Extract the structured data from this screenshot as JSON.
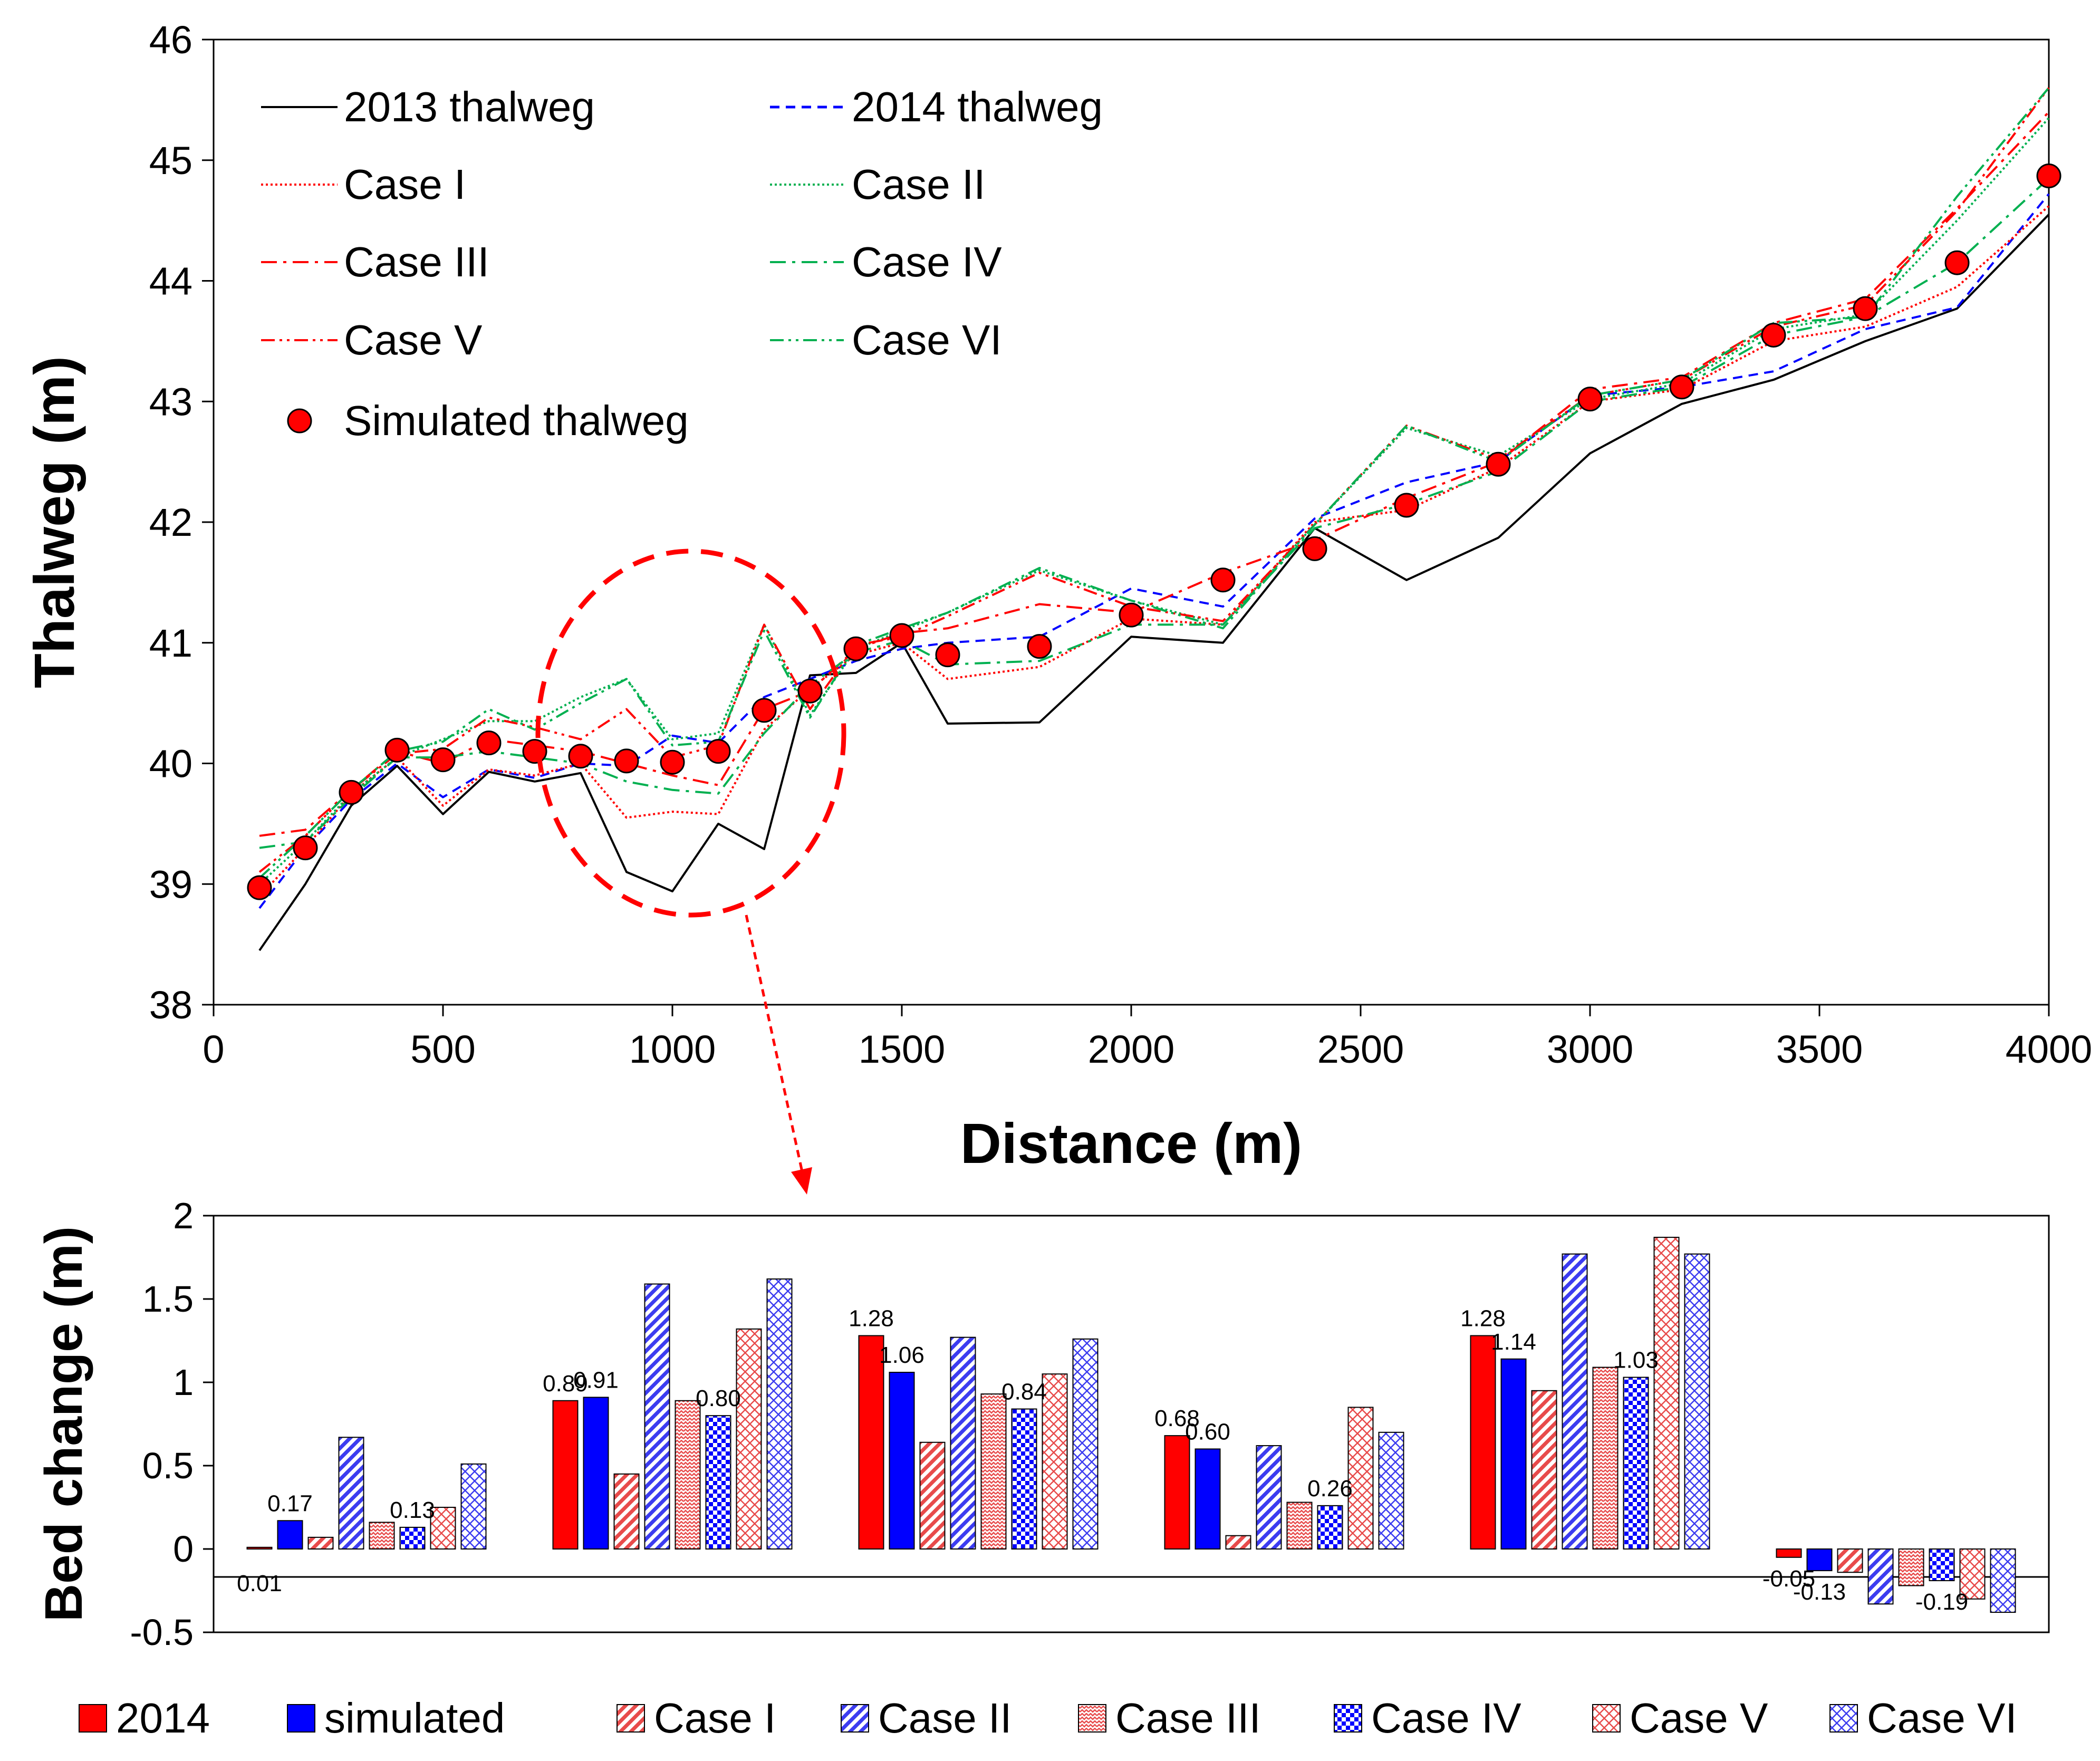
{
  "chart_data": [
    {
      "type": "line",
      "title": "",
      "xlabel": "Distance (m)",
      "ylabel": "Thalweg (m)",
      "xlim": [
        0,
        4000
      ],
      "ylim": [
        38,
        46
      ],
      "xticks": [
        "0",
        "500",
        "1000",
        "1500",
        "2000",
        "2500",
        "3000",
        "3500",
        "4000"
      ],
      "yticks": [
        "38",
        "39",
        "40",
        "41",
        "42",
        "43",
        "44",
        "45",
        "46"
      ],
      "legend_position": "top-left",
      "series": [
        {
          "name": "2013 thalweg",
          "color": "#000000",
          "style": "solid",
          "x": [
            100,
            200,
            300,
            400,
            500,
            600,
            700,
            800,
            900,
            1000,
            1100,
            1200,
            1300,
            1400,
            1500,
            1600,
            1800,
            2000,
            2200,
            2400,
            2600,
            2800,
            3000,
            3200,
            3400,
            3600,
            3800,
            4000
          ],
          "y": [
            38.45,
            39.0,
            39.65,
            39.98,
            39.58,
            39.93,
            39.85,
            39.92,
            39.1,
            38.94,
            39.5,
            39.29,
            40.73,
            40.75,
            41.0,
            40.33,
            40.34,
            41.05,
            41.0,
            41.95,
            41.52,
            41.87,
            42.57,
            42.98,
            43.18,
            43.5,
            43.77,
            44.55
          ]
        },
        {
          "name": "2014 thalweg",
          "color": "#0000ff",
          "style": "dash",
          "x": [
            100,
            200,
            300,
            400,
            500,
            600,
            700,
            800,
            900,
            1000,
            1100,
            1200,
            1300,
            1400,
            1500,
            1600,
            1800,
            2000,
            2200,
            2400,
            2600,
            2800,
            3000,
            3200,
            3400,
            3600,
            3800,
            4000
          ],
          "y": [
            38.8,
            39.3,
            39.7,
            40.0,
            39.72,
            39.95,
            39.88,
            40.0,
            39.98,
            40.23,
            40.17,
            40.55,
            40.7,
            40.85,
            40.95,
            41.0,
            41.05,
            41.45,
            41.3,
            42.03,
            42.33,
            42.5,
            43.05,
            43.12,
            43.25,
            43.6,
            43.78,
            44.72
          ]
        },
        {
          "name": "Case I",
          "color": "#ff0000",
          "style": "dot",
          "x": [
            100,
            200,
            300,
            400,
            500,
            600,
            700,
            800,
            900,
            1000,
            1100,
            1200,
            1300,
            1400,
            1500,
            1600,
            1800,
            2000,
            2200,
            2400,
            2600,
            2800,
            3000,
            3200,
            3400,
            3600,
            3800,
            4000
          ],
          "y": [
            38.9,
            39.3,
            39.75,
            40.05,
            39.65,
            39.95,
            39.9,
            40.0,
            39.55,
            39.6,
            39.58,
            40.28,
            40.62,
            40.9,
            41.0,
            40.7,
            40.8,
            41.2,
            41.15,
            42.0,
            42.1,
            42.45,
            43.0,
            43.1,
            43.5,
            43.62,
            43.95,
            44.62
          ]
        },
        {
          "name": "Case II",
          "color": "#00b050",
          "style": "dot",
          "x": [
            100,
            200,
            300,
            400,
            500,
            600,
            700,
            800,
            900,
            1000,
            1100,
            1200,
            1300,
            1400,
            1500,
            1600,
            1800,
            2000,
            2200,
            2400,
            2600,
            2800,
            3000,
            3200,
            3400,
            3600,
            3800,
            4000
          ],
          "y": [
            39.0,
            39.35,
            39.75,
            40.05,
            40.2,
            40.35,
            40.35,
            40.55,
            40.7,
            40.2,
            40.25,
            41.15,
            40.4,
            40.95,
            41.1,
            41.25,
            41.6,
            41.35,
            41.15,
            41.98,
            42.78,
            42.55,
            43.02,
            43.15,
            43.6,
            43.72,
            44.5,
            45.35
          ]
        },
        {
          "name": "Case III",
          "color": "#ff0000",
          "style": "dashdot",
          "x": [
            100,
            200,
            300,
            400,
            500,
            600,
            700,
            800,
            900,
            1000,
            1100,
            1200,
            1300,
            1400,
            1500,
            1600,
            1800,
            2000,
            2200,
            2400,
            2600,
            2800,
            3000,
            3200,
            3400,
            3600,
            3800,
            4000
          ],
          "y": [
            39.4,
            39.45,
            39.78,
            40.1,
            40.0,
            40.2,
            40.15,
            40.1,
            40.0,
            39.9,
            39.82,
            40.45,
            40.6,
            40.95,
            41.08,
            41.12,
            41.32,
            41.25,
            41.58,
            41.85,
            42.2,
            42.5,
            43.1,
            43.2,
            43.65,
            43.85,
            44.6,
            45.4
          ]
        },
        {
          "name": "Case IV",
          "color": "#00b050",
          "style": "dashdot",
          "x": [
            100,
            200,
            300,
            400,
            500,
            600,
            700,
            800,
            900,
            1000,
            1100,
            1200,
            1300,
            1400,
            1500,
            1600,
            1800,
            2000,
            2200,
            2400,
            2600,
            2800,
            3000,
            3200,
            3400,
            3600,
            3800,
            4000
          ],
          "y": [
            39.3,
            39.35,
            39.72,
            40.05,
            40.05,
            40.1,
            40.05,
            40.0,
            39.85,
            39.78,
            39.75,
            40.25,
            40.65,
            40.92,
            41.02,
            40.82,
            40.85,
            41.15,
            41.15,
            41.95,
            42.15,
            42.42,
            43.0,
            43.12,
            43.55,
            43.7,
            44.15,
            44.85
          ]
        },
        {
          "name": "Case V",
          "color": "#ff0000",
          "style": "dashdotdot",
          "x": [
            100,
            200,
            300,
            400,
            500,
            600,
            700,
            800,
            900,
            1000,
            1100,
            1200,
            1300,
            1400,
            1500,
            1600,
            1800,
            2000,
            2200,
            2400,
            2600,
            2800,
            3000,
            3200,
            3400,
            3600,
            3800,
            4000
          ],
          "y": [
            39.1,
            39.4,
            39.78,
            40.08,
            40.12,
            40.38,
            40.3,
            40.2,
            40.45,
            40.05,
            40.15,
            41.15,
            40.45,
            40.98,
            41.05,
            41.22,
            41.58,
            41.3,
            41.18,
            41.98,
            42.8,
            42.52,
            43.05,
            43.18,
            43.62,
            43.8,
            44.58,
            45.6
          ]
        },
        {
          "name": "Case VI",
          "color": "#00b050",
          "style": "dashdotdot",
          "x": [
            100,
            200,
            300,
            400,
            500,
            600,
            700,
            800,
            900,
            1000,
            1100,
            1200,
            1300,
            1400,
            1500,
            1600,
            1800,
            2000,
            2200,
            2400,
            2600,
            2800,
            3000,
            3200,
            3400,
            3600,
            3800,
            4000
          ],
          "y": [
            39.05,
            39.4,
            39.78,
            40.1,
            40.18,
            40.45,
            40.28,
            40.5,
            40.7,
            40.15,
            40.18,
            41.1,
            40.38,
            40.98,
            41.12,
            41.25,
            41.62,
            41.35,
            41.12,
            41.98,
            42.8,
            42.5,
            43.05,
            43.18,
            43.65,
            43.7,
            44.7,
            45.6
          ]
        },
        {
          "name": "Simulated thalweg",
          "color": "#ff0000",
          "style": "marker",
          "x": [
            100,
            200,
            300,
            400,
            500,
            600,
            700,
            800,
            900,
            1000,
            1100,
            1200,
            1300,
            1400,
            1500,
            1600,
            1800,
            2000,
            2200,
            2400,
            2600,
            2800,
            3000,
            3200,
            3400,
            3600,
            3800,
            4000
          ],
          "y": [
            38.97,
            39.3,
            39.76,
            40.11,
            40.03,
            40.17,
            40.1,
            40.06,
            40.02,
            40.01,
            40.1,
            40.44,
            40.6,
            40.95,
            41.06,
            40.9,
            40.97,
            41.23,
            41.52,
            41.78,
            42.14,
            42.48,
            43.02,
            43.12,
            43.55,
            43.77,
            44.15,
            44.87
          ]
        }
      ]
    },
    {
      "type": "bar",
      "title": "",
      "xlabel": "",
      "ylabel": "Bed change (m)",
      "ylim": [
        -0.5,
        2
      ],
      "yticks": [
        "-0.5",
        "0",
        "0.5",
        "1",
        "1.5",
        "2"
      ],
      "legend_position": "bottom",
      "series": [
        {
          "name": "2014",
          "color": "#ff0000",
          "pattern": "solid-red",
          "values": [
            0.01,
            0.89,
            1.28,
            0.68,
            1.28,
            -0.05
          ]
        },
        {
          "name": "simulated",
          "color": "#0000ff",
          "pattern": "solid-blue",
          "values": [
            0.17,
            0.91,
            1.06,
            0.6,
            1.14,
            -0.13
          ]
        },
        {
          "name": "Case I",
          "color": "#ff0000",
          "pattern": "diag-red",
          "values": [
            0.07,
            0.45,
            0.64,
            0.08,
            0.95,
            -0.14
          ]
        },
        {
          "name": "Case II",
          "color": "#0000ff",
          "pattern": "diag-blue",
          "values": [
            0.67,
            1.59,
            1.27,
            0.62,
            1.77,
            -0.33
          ]
        },
        {
          "name": "Case III",
          "color": "#ff0000",
          "pattern": "zig-red",
          "values": [
            0.16,
            0.89,
            0.93,
            0.28,
            1.09,
            -0.22
          ]
        },
        {
          "name": "Case IV",
          "color": "#0000ff",
          "pattern": "check-blue",
          "values": [
            0.13,
            0.8,
            0.84,
            0.26,
            1.03,
            -0.19
          ]
        },
        {
          "name": "Case V",
          "color": "#ff0000",
          "pattern": "cross-red",
          "values": [
            0.25,
            1.32,
            1.05,
            0.85,
            1.87,
            -0.3
          ]
        },
        {
          "name": "Case VI",
          "color": "#0000ff",
          "pattern": "cross-blue",
          "values": [
            0.51,
            1.62,
            1.26,
            0.7,
            1.77,
            -0.38
          ]
        }
      ],
      "data_labels": [
        {
          "series": 0,
          "group": 0,
          "text": "0.01"
        },
        {
          "series": 1,
          "group": 0,
          "text": "0.17"
        },
        {
          "series": 5,
          "group": 0,
          "text": "0.13"
        },
        {
          "series": 0,
          "group": 1,
          "text": "0.89"
        },
        {
          "series": 1,
          "group": 1,
          "text": "0.91"
        },
        {
          "series": 5,
          "group": 1,
          "text": "0.80"
        },
        {
          "series": 0,
          "group": 2,
          "text": "1.28"
        },
        {
          "series": 1,
          "group": 2,
          "text": "1.06"
        },
        {
          "series": 5,
          "group": 2,
          "text": "0.84"
        },
        {
          "series": 0,
          "group": 3,
          "text": "0.68"
        },
        {
          "series": 1,
          "group": 3,
          "text": "0.60"
        },
        {
          "series": 5,
          "group": 3,
          "text": "0.26"
        },
        {
          "series": 0,
          "group": 4,
          "text": "1.28"
        },
        {
          "series": 1,
          "group": 4,
          "text": "1.14"
        },
        {
          "series": 5,
          "group": 4,
          "text": "1.03"
        },
        {
          "series": 0,
          "group": 5,
          "text": "-0.05"
        },
        {
          "series": 1,
          "group": 5,
          "text": "-0.13"
        },
        {
          "series": 5,
          "group": 5,
          "text": "-0.19"
        }
      ]
    }
  ]
}
